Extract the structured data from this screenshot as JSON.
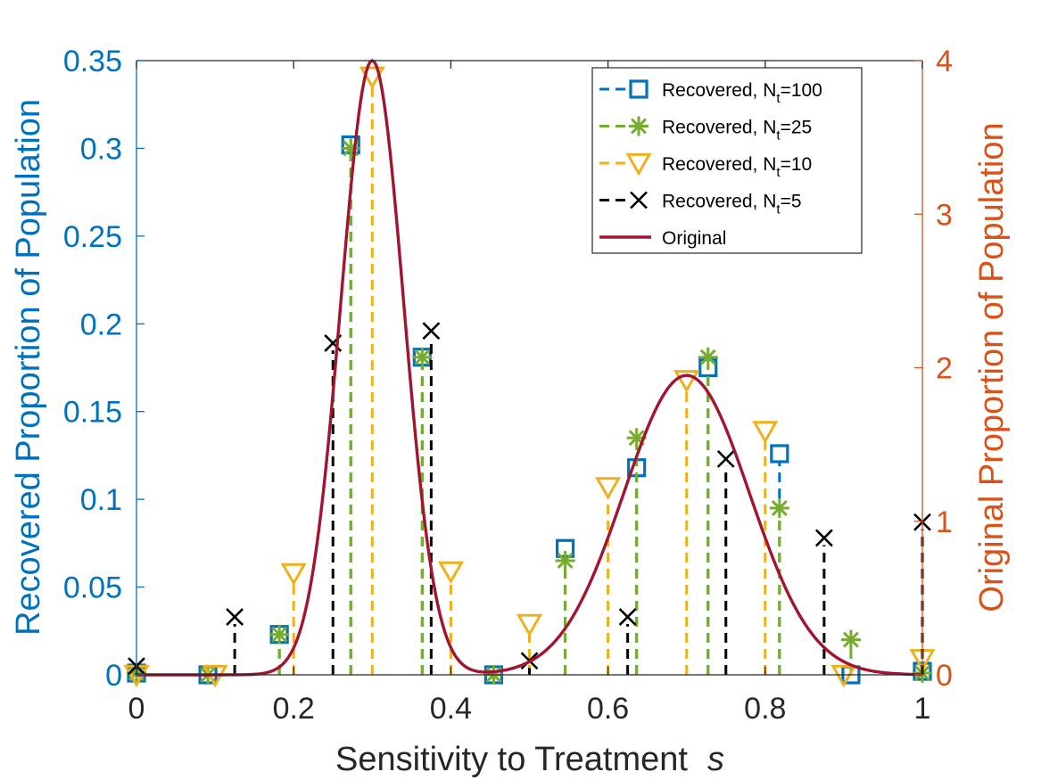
{
  "chart_data": {
    "type": "line",
    "xlabel": "Sensitivity to Treatment",
    "xlabel_var": "s",
    "ylabel_left": "Recovered Proportion of Population",
    "ylabel_right": "Original Proportion of Population",
    "xlim": [
      0,
      1
    ],
    "ylim_left": [
      0,
      0.35
    ],
    "ylim_right": [
      0,
      4
    ],
    "x_ticks": [
      "0",
      "0.2",
      "0.4",
      "0.6",
      "0.8",
      "1"
    ],
    "y_left_ticks": [
      "0",
      "0.05",
      "0.1",
      "0.15",
      "0.2",
      "0.25",
      "0.3",
      "0.35"
    ],
    "y_right_ticks": [
      "0",
      "1",
      "2",
      "3",
      "4"
    ],
    "grid": false,
    "legend_position": "top-right",
    "colors": {
      "left_axis": "#0072BD",
      "right_axis": "#D95319",
      "original": "#A2142F",
      "n100": "#0072BD",
      "n25": "#77AC30",
      "n10": "#EDB120",
      "n5": "#000000"
    },
    "series": [
      {
        "name": "Recovered, N",
        "sub": "t",
        "suffix": "=100",
        "marker": "square",
        "color_key": "n100",
        "x": [
          0,
          0.0909,
          0.1818,
          0.2727,
          0.3636,
          0.4545,
          0.5455,
          0.6364,
          0.7273,
          0.8182,
          0.9091,
          1.0
        ],
        "y": [
          0.001,
          0.0,
          0.023,
          0.302,
          0.181,
          0.0,
          0.072,
          0.118,
          0.175,
          0.126,
          0.0,
          0.002
        ]
      },
      {
        "name": "Recovered, N",
        "sub": "t",
        "suffix": "=25",
        "marker": "star",
        "color_key": "n25",
        "x": [
          0,
          0.0909,
          0.1818,
          0.2727,
          0.3636,
          0.4545,
          0.5455,
          0.6364,
          0.7273,
          0.8182,
          0.9091,
          1.0
        ],
        "y": [
          0.001,
          0.0,
          0.023,
          0.3,
          0.181,
          0.0,
          0.065,
          0.135,
          0.181,
          0.095,
          0.02,
          0.001
        ]
      },
      {
        "name": "Recovered, N",
        "sub": "t",
        "suffix": "=10",
        "marker": "triangle-down",
        "color_key": "n10",
        "x": [
          0,
          0.1,
          0.2,
          0.3,
          0.4,
          0.5,
          0.6,
          0.7,
          0.8,
          0.9,
          1.0
        ],
        "y": [
          0.0,
          0.0,
          0.058,
          0.341,
          0.059,
          0.029,
          0.107,
          0.168,
          0.139,
          0.0,
          0.009
        ]
      },
      {
        "name": "Recovered, N",
        "sub": "t",
        "suffix": "=5",
        "marker": "x",
        "color_key": "n5",
        "x": [
          0,
          0.125,
          0.25,
          0.375,
          0.5,
          0.625,
          0.75,
          0.875,
          1.0
        ],
        "y": [
          0.005,
          0.033,
          0.189,
          0.196,
          0.008,
          0.033,
          0.123,
          0.078,
          0.087
        ]
      }
    ],
    "original": {
      "name": "Original",
      "axis": "right",
      "color_key": "original",
      "components": [
        {
          "mean": 0.3,
          "sd": 0.04,
          "peak": 4.0
        },
        {
          "mean": 0.7,
          "sd": 0.08,
          "peak": 1.95
        }
      ]
    }
  }
}
